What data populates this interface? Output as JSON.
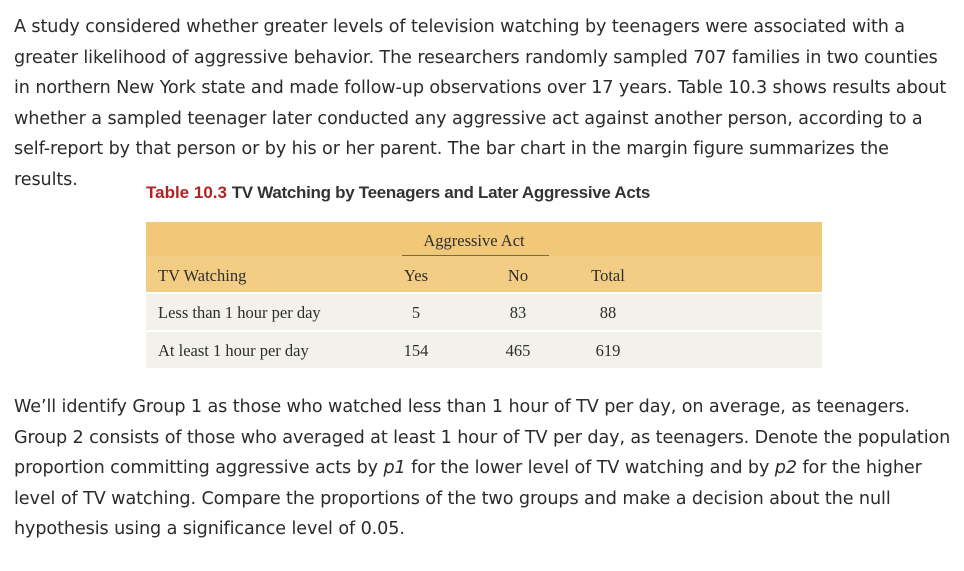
{
  "paragraph1": "A study considered whether greater levels of television watching by teenagers were associated with a greater likelihood of aggressive behavior. The researchers randomly sampled 707 families in two counties in northern New York state and made follow-up observations over 17 years. Table 10.3 shows results about whether a sampled teenager later conducted any aggressive act against another person, according to a self-report by that person or by his or her parent. The bar chart in the margin figure summarizes the results.",
  "table": {
    "label": "Table 10.3",
    "title": "TV Watching by Teenagers and Later Aggressive Acts",
    "group_header": "Aggressive Act",
    "headers": [
      "TV Watching",
      "Yes",
      "No",
      "Total"
    ],
    "rows": [
      [
        "Less than 1 hour per day",
        "5",
        "83",
        "88"
      ],
      [
        "At least 1 hour per day",
        "154",
        "465",
        "619"
      ]
    ]
  },
  "paragraph2": {
    "t1": "We’ll identify Group 1 as those who watched less than 1 hour of TV per day, on average, as teenagers. Group 2 consists of those who averaged at least 1 hour of TV per day, as teenagers. Denote the population proportion committing aggressive acts by ",
    "p1": "p1",
    "t2": " for the lower level of TV watching and by ",
    "p2": "p2",
    "t3": " for the higher level of TV watching. Compare the proportions of the two groups and make a decision about the null hypothesis using a significance level of 0.05."
  }
}
